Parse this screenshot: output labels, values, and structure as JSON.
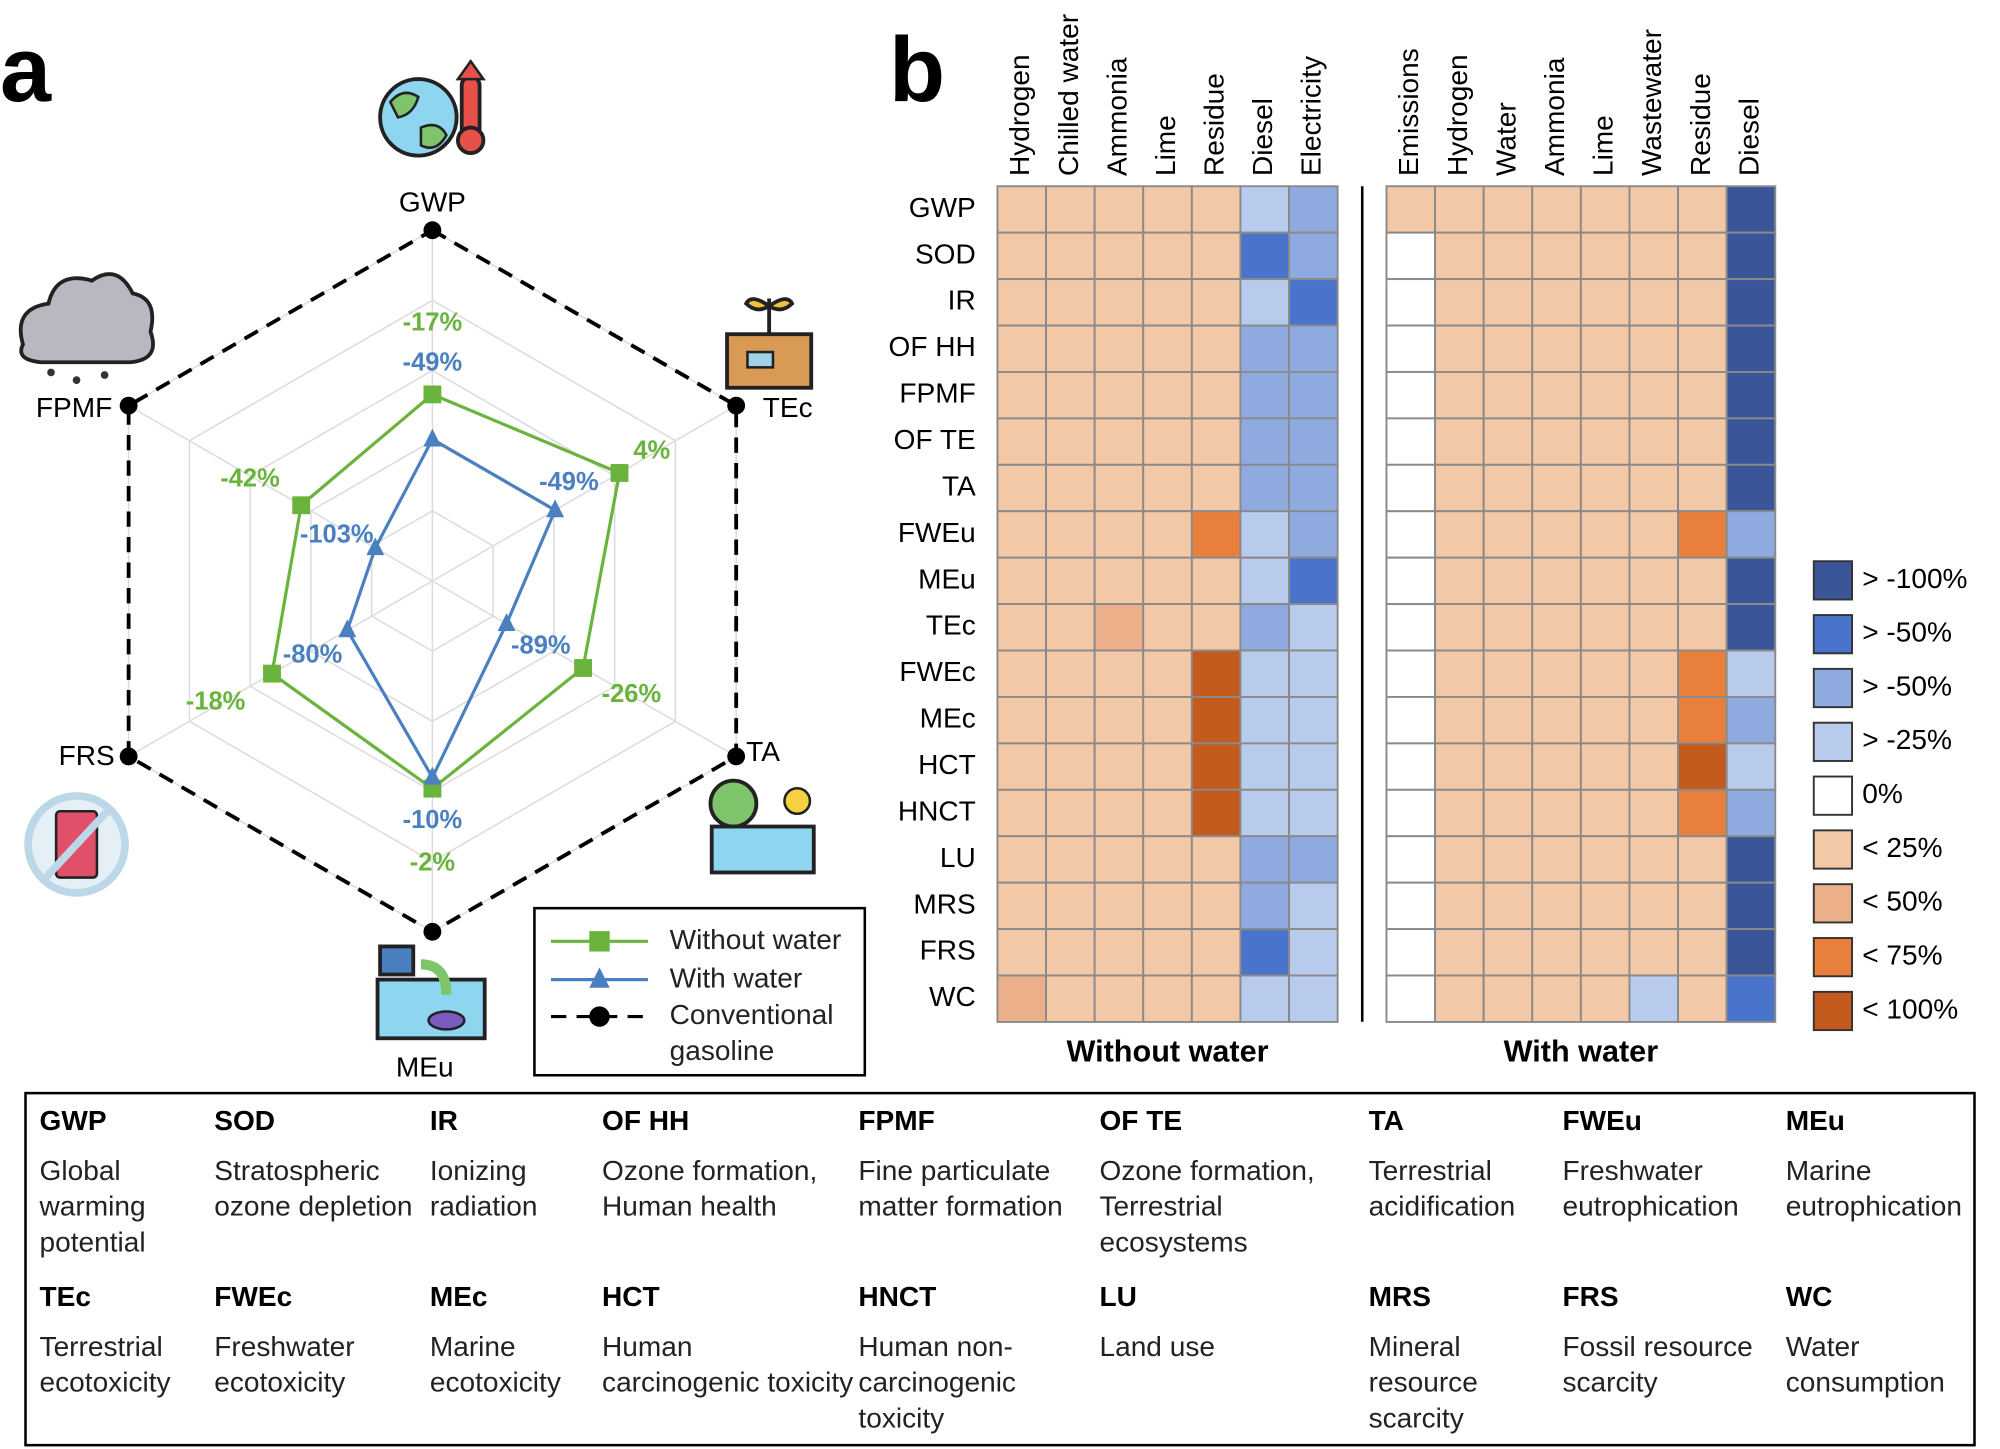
{
  "chart_data": [
    {
      "type": "radar",
      "panel_label": "a",
      "axes": [
        "GWP",
        "TEc",
        "TA",
        "MEu",
        "FRS",
        "FPMF"
      ],
      "rlim": [
        -150,
        100
      ],
      "rticks": [
        -150,
        -100,
        -50,
        0,
        50,
        100
      ],
      "grid": true,
      "series": [
        {
          "name": "Without water",
          "color": "#6ab43e",
          "marker": "square",
          "values": [
            -17,
            4,
            -26,
            -2,
            -18,
            -42
          ],
          "value_labels": [
            "-17%",
            "4%",
            "-26%",
            "-2%",
            "-18%",
            "-42%"
          ]
        },
        {
          "name": "With water",
          "color": "#4a80c0",
          "marker": "triangle",
          "values": [
            -49,
            -49,
            -89,
            -10,
            -80,
            -103
          ],
          "value_labels": [
            "-49%",
            "-49%",
            "-89%",
            "-10%",
            "-80%",
            "-103%"
          ]
        },
        {
          "name": "Conventional gasoline",
          "color": "#000000",
          "marker": "circle",
          "dashed": true,
          "values": [
            100,
            100,
            100,
            100,
            100,
            100
          ]
        }
      ]
    },
    {
      "type": "heatmap",
      "panel_label": "b",
      "rows": [
        "GWP",
        "SOD",
        "IR",
        "OF HH",
        "FPMF",
        "OF TE",
        "TA",
        "FWEu",
        "MEu",
        "TEc",
        "FWEc",
        "MEc",
        "HCT",
        "HNCT",
        "LU",
        "MRS",
        "FRS",
        "WC"
      ],
      "legend": [
        {
          "label": "> -100%",
          "color": "#3a5699"
        },
        {
          "label": "> -50%",
          "color": "#4a74cc"
        },
        {
          "label": "> -50%",
          "color": "#8eaadf"
        },
        {
          "label": "> -25%",
          "color": "#b9cbec"
        },
        {
          "label": "0%",
          "color": "#ffffff"
        },
        {
          "label": "< 25%",
          "color": "#f3c8a7"
        },
        {
          "label": "< 50%",
          "color": "#ebb08a"
        },
        {
          "label": "< 75%",
          "color": "#e8803c"
        },
        {
          "label": "< 100%",
          "color": "#c35a1e"
        }
      ],
      "groups": [
        {
          "title": "Without water",
          "columns": [
            "Hydrogen",
            "Chilled water",
            "Ammonia",
            "Lime",
            "Residue",
            "Diesel",
            "Electricity"
          ],
          "values": [
            [
              5,
              5,
              5,
              5,
              5,
              3,
              2
            ],
            [
              5,
              5,
              5,
              5,
              5,
              1,
              2
            ],
            [
              5,
              5,
              5,
              5,
              5,
              3,
              1
            ],
            [
              5,
              5,
              5,
              5,
              5,
              2,
              2
            ],
            [
              5,
              5,
              5,
              5,
              5,
              2,
              2
            ],
            [
              5,
              5,
              5,
              5,
              5,
              2,
              2
            ],
            [
              5,
              5,
              5,
              5,
              5,
              2,
              2
            ],
            [
              5,
              5,
              5,
              5,
              7,
              3,
              2
            ],
            [
              5,
              5,
              5,
              5,
              5,
              3,
              1
            ],
            [
              5,
              5,
              6,
              5,
              5,
              2,
              3
            ],
            [
              5,
              5,
              5,
              5,
              8,
              3,
              3
            ],
            [
              5,
              5,
              5,
              5,
              8,
              3,
              3
            ],
            [
              5,
              5,
              5,
              5,
              8,
              3,
              3
            ],
            [
              5,
              5,
              5,
              5,
              8,
              3,
              3
            ],
            [
              5,
              5,
              5,
              5,
              5,
              2,
              2
            ],
            [
              5,
              5,
              5,
              5,
              5,
              2,
              3
            ],
            [
              5,
              5,
              5,
              5,
              5,
              1,
              3
            ],
            [
              6,
              5,
              5,
              5,
              5,
              3,
              3
            ]
          ]
        },
        {
          "title": "With water",
          "columns": [
            "Emissions",
            "Hydrogen",
            "Water",
            "Ammonia",
            "Lime",
            "Wastewater",
            "Residue",
            "Diesel"
          ],
          "values": [
            [
              5,
              5,
              5,
              5,
              5,
              5,
              5,
              0
            ],
            [
              4,
              5,
              5,
              5,
              5,
              5,
              5,
              0
            ],
            [
              4,
              5,
              5,
              5,
              5,
              5,
              5,
              0
            ],
            [
              4,
              5,
              5,
              5,
              5,
              5,
              5,
              0
            ],
            [
              4,
              5,
              5,
              5,
              5,
              5,
              5,
              0
            ],
            [
              4,
              5,
              5,
              5,
              5,
              5,
              5,
              0
            ],
            [
              4,
              5,
              5,
              5,
              5,
              5,
              5,
              0
            ],
            [
              4,
              5,
              5,
              5,
              5,
              5,
              7,
              2
            ],
            [
              4,
              5,
              5,
              5,
              5,
              5,
              5,
              0
            ],
            [
              4,
              5,
              5,
              5,
              5,
              5,
              5,
              0
            ],
            [
              4,
              5,
              5,
              5,
              5,
              5,
              7,
              3
            ],
            [
              4,
              5,
              5,
              5,
              5,
              5,
              7,
              2
            ],
            [
              4,
              5,
              5,
              5,
              5,
              5,
              8,
              3
            ],
            [
              4,
              5,
              5,
              5,
              5,
              5,
              7,
              2
            ],
            [
              4,
              5,
              5,
              5,
              5,
              5,
              5,
              0
            ],
            [
              4,
              5,
              5,
              5,
              5,
              5,
              5,
              0
            ],
            [
              4,
              5,
              5,
              5,
              5,
              5,
              5,
              0
            ],
            [
              4,
              5,
              5,
              5,
              5,
              3,
              5,
              1
            ]
          ]
        }
      ]
    }
  ],
  "glossary": [
    {
      "abbr": "GWP",
      "description": "Global warming potential"
    },
    {
      "abbr": "SOD",
      "description": "Stratospheric ozone depletion"
    },
    {
      "abbr": "IR",
      "description": "Ionizing radiation"
    },
    {
      "abbr": "OF HH",
      "description": "Ozone formation, Human health"
    },
    {
      "abbr": "FPMF",
      "description": "Fine particulate matter formation"
    },
    {
      "abbr": "OF TE",
      "description": "Ozone formation, Terrestrial ecosystems"
    },
    {
      "abbr": "TA",
      "description": "Terrestrial acidification"
    },
    {
      "abbr": "FWEu",
      "description": "Freshwater eutrophication"
    },
    {
      "abbr": "MEu",
      "description": "Marine eutrophication"
    },
    {
      "abbr": "TEc",
      "description": "Terrestrial ecotoxicity"
    },
    {
      "abbr": "FWEc",
      "description": "Freshwater ecotoxicity"
    },
    {
      "abbr": "MEc",
      "description": "Marine ecotoxicity"
    },
    {
      "abbr": "HCT",
      "description": "Human carcinogenic toxicity"
    },
    {
      "abbr": "HNCT",
      "description": "Human non-carcinogenic toxicity"
    },
    {
      "abbr": "LU",
      "description": "Land use"
    },
    {
      "abbr": "MRS",
      "description": "Mineral resource scarcity"
    },
    {
      "abbr": "FRS",
      "description": "Fossil resource scarcity"
    },
    {
      "abbr": "WC",
      "description": "Water consumption"
    }
  ]
}
